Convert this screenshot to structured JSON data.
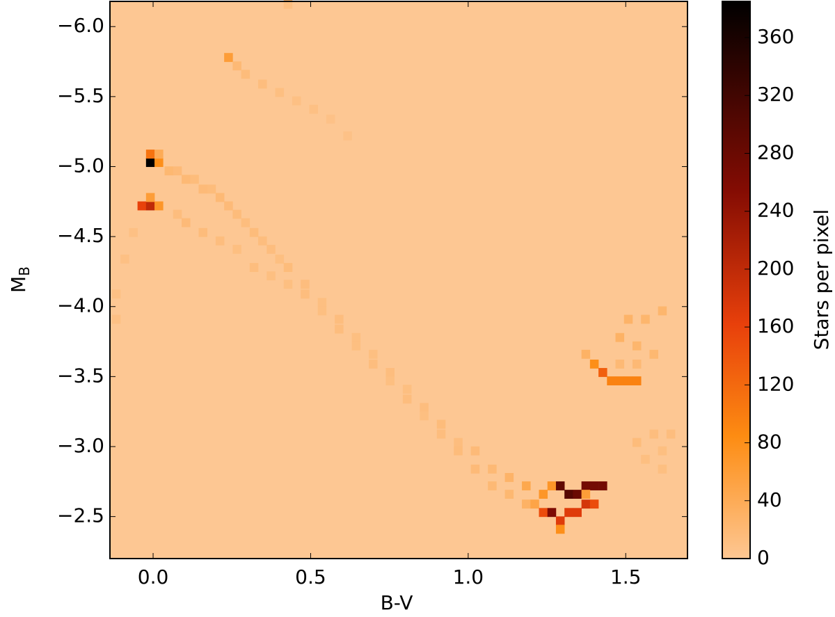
{
  "chart_data": {
    "type": "heatmap",
    "xlabel": "B-V",
    "ylabel": "M",
    "ylabel_sub": "B",
    "colorbar_label": "Stars per pixel",
    "xlim": [
      -0.137,
      1.696
    ],
    "ylim": [
      -6.18,
      -2.2
    ],
    "y_inverted": true,
    "xticks": [
      {
        "value": 0,
        "label": "0.0"
      },
      {
        "value": 0.5,
        "label": "0.5"
      },
      {
        "value": 1,
        "label": "1.0"
      },
      {
        "value": 1.5,
        "label": "1.5"
      }
    ],
    "yticks": [
      {
        "value": -6,
        "label": "−6.0"
      },
      {
        "value": -5.5,
        "label": "−5.5"
      },
      {
        "value": -5,
        "label": "−5.0"
      },
      {
        "value": -4.5,
        "label": "−4.5"
      },
      {
        "value": -4,
        "label": "−4.0"
      },
      {
        "value": -3.5,
        "label": "−3.5"
      },
      {
        "value": -3,
        "label": "−3.0"
      },
      {
        "value": -2.5,
        "label": "−2.5"
      }
    ],
    "clim": [
      0,
      385
    ],
    "cticks": [
      0,
      40,
      80,
      120,
      160,
      200,
      240,
      280,
      320,
      360
    ],
    "colormap": [
      [
        0,
        "#fdc793"
      ],
      [
        0.22,
        "#fd8c12"
      ],
      [
        0.42,
        "#e8400b"
      ],
      [
        0.66,
        "#840c03"
      ],
      [
        1,
        "#000000"
      ]
    ],
    "bin_size": [
      0.027,
      0.0625
    ],
    "x": [
      -0.009,
      0.018,
      -0.009,
      0.018,
      -0.036,
      -0.009,
      0.018,
      -0.009,
      0.05,
      0.077,
      0.104,
      0.131,
      0.158,
      0.185,
      0.212,
      0.239,
      0.266,
      0.293,
      0.32,
      0.347,
      0.374,
      0.401,
      0.428,
      0.482,
      0.536,
      0.59,
      0.644,
      0.698,
      0.752,
      0.806,
      0.86,
      0.914,
      0.968,
      1.022,
      1.076,
      1.13,
      1.184,
      1.238,
      0.077,
      0.104,
      0.158,
      0.212,
      0.266,
      0.32,
      0.374,
      0.428,
      0.482,
      0.536,
      0.59,
      0.644,
      0.698,
      0.752,
      0.806,
      0.86,
      0.914,
      0.968,
      1.022,
      1.076,
      1.13,
      1.184,
      1.211,
      1.238,
      1.265,
      1.292,
      1.319,
      1.346,
      1.373,
      1.4,
      1.292,
      1.265,
      1.292,
      1.319,
      1.346,
      1.373,
      1.4,
      1.427,
      1.373,
      1.373,
      1.4,
      1.427,
      1.454,
      1.481,
      1.508,
      1.535,
      1.481,
      1.535,
      1.589,
      1.508,
      1.562,
      1.616,
      1.481,
      1.535,
      0.239,
      0.266,
      0.293,
      0.347,
      0.401,
      0.455,
      0.509,
      0.563,
      0.617,
      0.428,
      -0.063,
      -0.09,
      -0.117,
      -0.117,
      1.535,
      1.589,
      1.643,
      1.616,
      1.562,
      1.616
    ],
    "y": [
      -5.03,
      -5.03,
      -5.09,
      -5.09,
      -4.72,
      -4.72,
      -4.72,
      -4.78,
      -4.97,
      -4.97,
      -4.91,
      -4.91,
      -4.84,
      -4.84,
      -4.78,
      -4.72,
      -4.66,
      -4.6,
      -4.53,
      -4.47,
      -4.41,
      -4.34,
      -4.28,
      -4.16,
      -4.03,
      -3.91,
      -3.78,
      -3.66,
      -3.53,
      -3.41,
      -3.28,
      -3.16,
      -3.03,
      -2.97,
      -2.84,
      -2.78,
      -2.72,
      -2.66,
      -4.66,
      -4.6,
      -4.53,
      -4.47,
      -4.41,
      -4.28,
      -4.22,
      -4.16,
      -4.09,
      -3.97,
      -3.84,
      -3.72,
      -3.59,
      -3.47,
      -3.34,
      -3.22,
      -3.09,
      -2.97,
      -2.84,
      -2.72,
      -2.66,
      -2.59,
      -2.59,
      -2.53,
      -2.53,
      -2.47,
      -2.53,
      -2.53,
      -2.59,
      -2.59,
      -2.41,
      -2.72,
      -2.72,
      -2.66,
      -2.66,
      -2.72,
      -2.72,
      -2.72,
      -2.66,
      -3.66,
      -3.59,
      -3.53,
      -3.47,
      -3.47,
      -3.47,
      -3.47,
      -3.78,
      -3.72,
      -3.66,
      -3.91,
      -3.91,
      -3.97,
      -3.59,
      -3.59,
      -5.78,
      -5.72,
      -5.66,
      -5.59,
      -5.53,
      -5.47,
      -5.41,
      -5.34,
      -5.22,
      -6.16,
      -4.53,
      -4.34,
      -4.09,
      -3.91,
      -3.03,
      -3.09,
      -3.09,
      -2.97,
      -2.91,
      -2.84
    ],
    "values": [
      385,
      80,
      110,
      40,
      160,
      200,
      70,
      60,
      22,
      18,
      20,
      16,
      18,
      16,
      20,
      18,
      16,
      14,
      16,
      14,
      14,
      12,
      16,
      14,
      12,
      14,
      12,
      12,
      14,
      12,
      14,
      16,
      14,
      18,
      20,
      28,
      45,
      70,
      14,
      18,
      16,
      14,
      12,
      14,
      12,
      12,
      14,
      12,
      14,
      12,
      14,
      12,
      14,
      12,
      14,
      16,
      18,
      20,
      22,
      30,
      50,
      150,
      260,
      170,
      170,
      170,
      180,
      150,
      80,
      70,
      290,
      300,
      280,
      270,
      270,
      270,
      60,
      30,
      80,
      130,
      95,
      95,
      95,
      95,
      30,
      25,
      22,
      28,
      25,
      25,
      20,
      20,
      60,
      20,
      16,
      14,
      12,
      10,
      10,
      8,
      8,
      12,
      10,
      10,
      10,
      10,
      16,
      14,
      14,
      12,
      12,
      12
    ]
  }
}
